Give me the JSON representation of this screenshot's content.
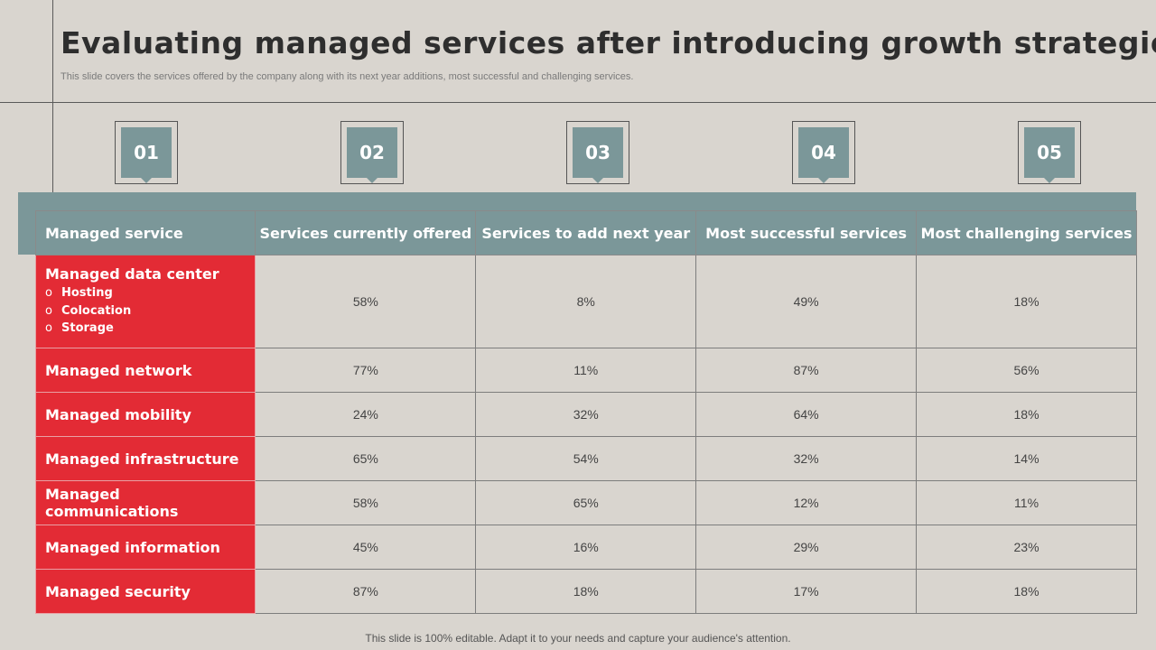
{
  "title": "Evaluating managed services after introducing growth strategies",
  "subtitle": "This slide covers the services offered by the company along with its next year additions, most successful and challenging services.",
  "markers": [
    "01",
    "02",
    "03",
    "04",
    "05"
  ],
  "table": {
    "headers": [
      "Managed service",
      "Services currently offered",
      "Services to add next year",
      "Most successful services",
      "Most challenging services"
    ],
    "rows": [
      {
        "label": "Managed data center",
        "subitems": [
          "Hosting",
          "Colocation",
          "Storage"
        ],
        "values": [
          "58%",
          "8%",
          "49%",
          "18%"
        ]
      },
      {
        "label": "Managed network",
        "values": [
          "77%",
          "11%",
          "87%",
          "56%"
        ]
      },
      {
        "label": "Managed mobility",
        "values": [
          "24%",
          "32%",
          "64%",
          "18%"
        ]
      },
      {
        "label": "Managed infrastructure",
        "values": [
          "65%",
          "54%",
          "32%",
          "14%"
        ]
      },
      {
        "label": "Managed communications",
        "values": [
          "58%",
          "65%",
          "12%",
          "11%"
        ]
      },
      {
        "label": "Managed information",
        "values": [
          "45%",
          "16%",
          "29%",
          "23%"
        ]
      },
      {
        "label": "Managed security",
        "values": [
          "87%",
          "18%",
          "17%",
          "18%"
        ]
      }
    ]
  },
  "subitem_bullet": "o",
  "footer": "This slide is 100% editable. Adapt it to your needs and capture your audience's attention.",
  "colors": {
    "accent": "#7b9799",
    "highlight": "#e32b35",
    "background": "#d9d5cf"
  }
}
